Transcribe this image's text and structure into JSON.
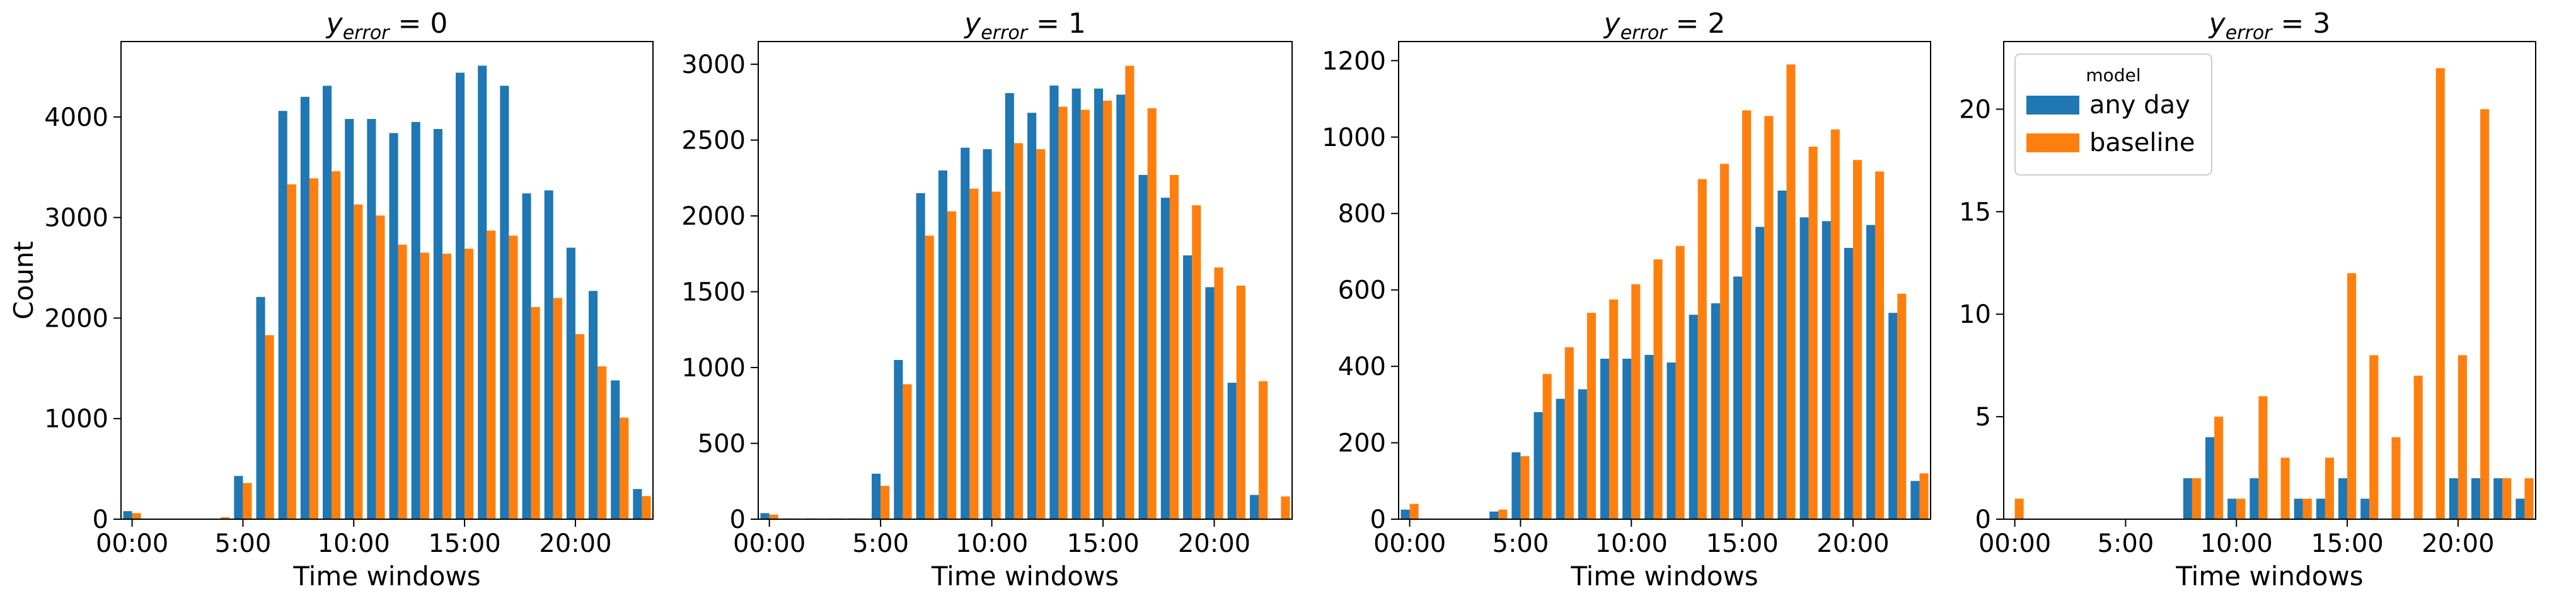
{
  "colors": {
    "any_day": "#1f77b4",
    "baseline": "#ff7f0e"
  },
  "legend": {
    "title": "model",
    "entries": [
      {
        "name": "any day",
        "color": "#1f77b4"
      },
      {
        "name": "baseline",
        "color": "#ff7f0e"
      }
    ]
  },
  "chart_data": [
    {
      "type": "bar",
      "title": {
        "base": "y",
        "subscript": "error",
        "rest": " = 0"
      },
      "xlabel": "Time windows",
      "ylabel": "Count",
      "x": [
        0,
        1,
        2,
        3,
        4,
        5,
        6,
        7,
        8,
        9,
        10,
        11,
        12,
        13,
        14,
        15,
        16,
        17,
        18,
        19,
        20,
        21,
        22,
        23
      ],
      "xticks": [
        0,
        5,
        10,
        15,
        20
      ],
      "xticklabels": [
        "00:00",
        "5:00",
        "10:00",
        "15:00",
        "20:00"
      ],
      "xlim": [
        -0.5,
        23.5
      ],
      "ylim": [
        0,
        4750
      ],
      "yticks": [
        0,
        1000,
        2000,
        3000,
        4000
      ],
      "series": [
        {
          "name": "any day",
          "color": "#1f77b4",
          "values": [
            80,
            5,
            5,
            5,
            5,
            430,
            2210,
            4060,
            4200,
            4310,
            3980,
            3980,
            3840,
            3950,
            3880,
            4440,
            4510,
            4310,
            3240,
            3270,
            2700,
            2270,
            1380,
            300
          ]
        },
        {
          "name": "baseline",
          "color": "#ff7f0e",
          "values": [
            60,
            5,
            5,
            5,
            20,
            360,
            1830,
            3330,
            3390,
            3460,
            3130,
            3020,
            2730,
            2650,
            2640,
            2690,
            2870,
            2820,
            2110,
            2200,
            1840,
            1520,
            1010,
            230
          ]
        }
      ]
    },
    {
      "type": "bar",
      "title": {
        "base": "y",
        "subscript": "error",
        "rest": " = 1"
      },
      "xlabel": "Time windows",
      "ylabel": "",
      "x": [
        0,
        1,
        2,
        3,
        4,
        5,
        6,
        7,
        8,
        9,
        10,
        11,
        12,
        13,
        14,
        15,
        16,
        17,
        18,
        19,
        20,
        21,
        22,
        23
      ],
      "xticks": [
        0,
        5,
        10,
        15,
        20
      ],
      "xticklabels": [
        "00:00",
        "5:00",
        "10:00",
        "15:00",
        "20:00"
      ],
      "xlim": [
        -0.5,
        23.5
      ],
      "ylim": [
        0,
        3150
      ],
      "yticks": [
        0,
        500,
        1000,
        1500,
        2000,
        2500,
        3000
      ],
      "series": [
        {
          "name": "any day",
          "color": "#1f77b4",
          "values": [
            40,
            5,
            5,
            5,
            5,
            300,
            1050,
            2150,
            2300,
            2450,
            2440,
            2810,
            2680,
            2860,
            2840,
            2840,
            2800,
            2270,
            2120,
            1740,
            1530,
            900,
            160,
            5
          ]
        },
        {
          "name": "baseline",
          "color": "#ff7f0e",
          "values": [
            30,
            5,
            5,
            5,
            5,
            220,
            890,
            1870,
            2030,
            2180,
            2160,
            2480,
            2440,
            2720,
            2700,
            2760,
            2990,
            2710,
            2270,
            2070,
            1660,
            1540,
            910,
            150
          ]
        }
      ]
    },
    {
      "type": "bar",
      "title": {
        "base": "y",
        "subscript": "error",
        "rest": " = 2"
      },
      "xlabel": "Time windows",
      "ylabel": "",
      "x": [
        0,
        1,
        2,
        3,
        4,
        5,
        6,
        7,
        8,
        9,
        10,
        11,
        12,
        13,
        14,
        15,
        16,
        17,
        18,
        19,
        20,
        21,
        22,
        23
      ],
      "xticks": [
        0,
        5,
        10,
        15,
        20
      ],
      "xticklabels": [
        "00:00",
        "5:00",
        "10:00",
        "15:00",
        "20:00"
      ],
      "xlim": [
        -0.5,
        23.5
      ],
      "ylim": [
        0,
        1250
      ],
      "yticks": [
        0,
        200,
        400,
        600,
        800,
        1000,
        1200
      ],
      "series": [
        {
          "name": "any day",
          "color": "#1f77b4",
          "values": [
            25,
            0,
            0,
            0,
            20,
            175,
            280,
            315,
            340,
            420,
            420,
            430,
            410,
            535,
            565,
            635,
            765,
            860,
            790,
            780,
            710,
            770,
            540,
            100
          ]
        },
        {
          "name": "baseline",
          "color": "#ff7f0e",
          "values": [
            40,
            0,
            0,
            0,
            25,
            165,
            380,
            450,
            540,
            575,
            615,
            680,
            715,
            890,
            930,
            1070,
            1055,
            1190,
            975,
            1020,
            940,
            910,
            590,
            120
          ]
        }
      ]
    },
    {
      "type": "bar",
      "title": {
        "base": "y",
        "subscript": "error",
        "rest": " = 3"
      },
      "xlabel": "Time windows",
      "ylabel": "",
      "x": [
        0,
        1,
        2,
        3,
        4,
        5,
        6,
        7,
        8,
        9,
        10,
        11,
        12,
        13,
        14,
        15,
        16,
        17,
        18,
        19,
        20,
        21,
        22,
        23
      ],
      "xticks": [
        0,
        5,
        10,
        15,
        20
      ],
      "xticklabels": [
        "00:00",
        "5:00",
        "10:00",
        "15:00",
        "20:00"
      ],
      "xlim": [
        -0.5,
        23.5
      ],
      "ylim": [
        0,
        23.3
      ],
      "yticks": [
        0,
        5,
        10,
        15,
        20
      ],
      "legend_position": "top-left",
      "series": [
        {
          "name": "any day",
          "color": "#1f77b4",
          "values": [
            0,
            0,
            0,
            0,
            0,
            0,
            0,
            0,
            2,
            4,
            1,
            2,
            0,
            1,
            1,
            2,
            1,
            0,
            0,
            0,
            2,
            2,
            2,
            1
          ]
        },
        {
          "name": "baseline",
          "color": "#ff7f0e",
          "values": [
            1,
            0,
            0,
            0,
            0,
            0,
            0,
            0,
            2,
            5,
            1,
            6,
            3,
            1,
            3,
            12,
            8,
            4,
            7,
            22,
            8,
            20,
            2,
            2
          ]
        }
      ]
    }
  ]
}
